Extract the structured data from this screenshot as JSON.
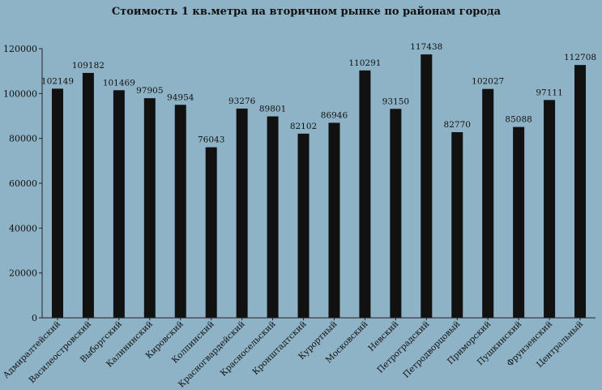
{
  "chart_data": {
    "type": "bar",
    "title": "Стоимость 1 кв.метра на вторичном  рынке по районам  города",
    "xlabel": "",
    "ylabel": "",
    "ylim": [
      0,
      120000
    ],
    "yticks": [
      0,
      20000,
      40000,
      60000,
      80000,
      100000,
      120000
    ],
    "grid": false,
    "legend": "none",
    "categories": [
      "Адмиралтейский",
      "Василеостровский",
      "Выборгский",
      "Калининский",
      "Кировский",
      "Колпинский",
      "Красногвардейский",
      "Красносельский",
      "Кронштадтский",
      "Курортный",
      "Московский",
      "Невский",
      "Петроградский",
      "Петродворцовый",
      "Приморский",
      "Пушкинский",
      "Фрунзенский",
      "Центральный"
    ],
    "values": [
      102149,
      109182,
      101469,
      97905,
      94954,
      76043,
      93276,
      89801,
      82102,
      86946,
      110291,
      93150,
      117438,
      82770,
      102027,
      85088,
      97111,
      112708
    ],
    "bar_color": "#111111",
    "background_color": "#8fb3c6"
  }
}
